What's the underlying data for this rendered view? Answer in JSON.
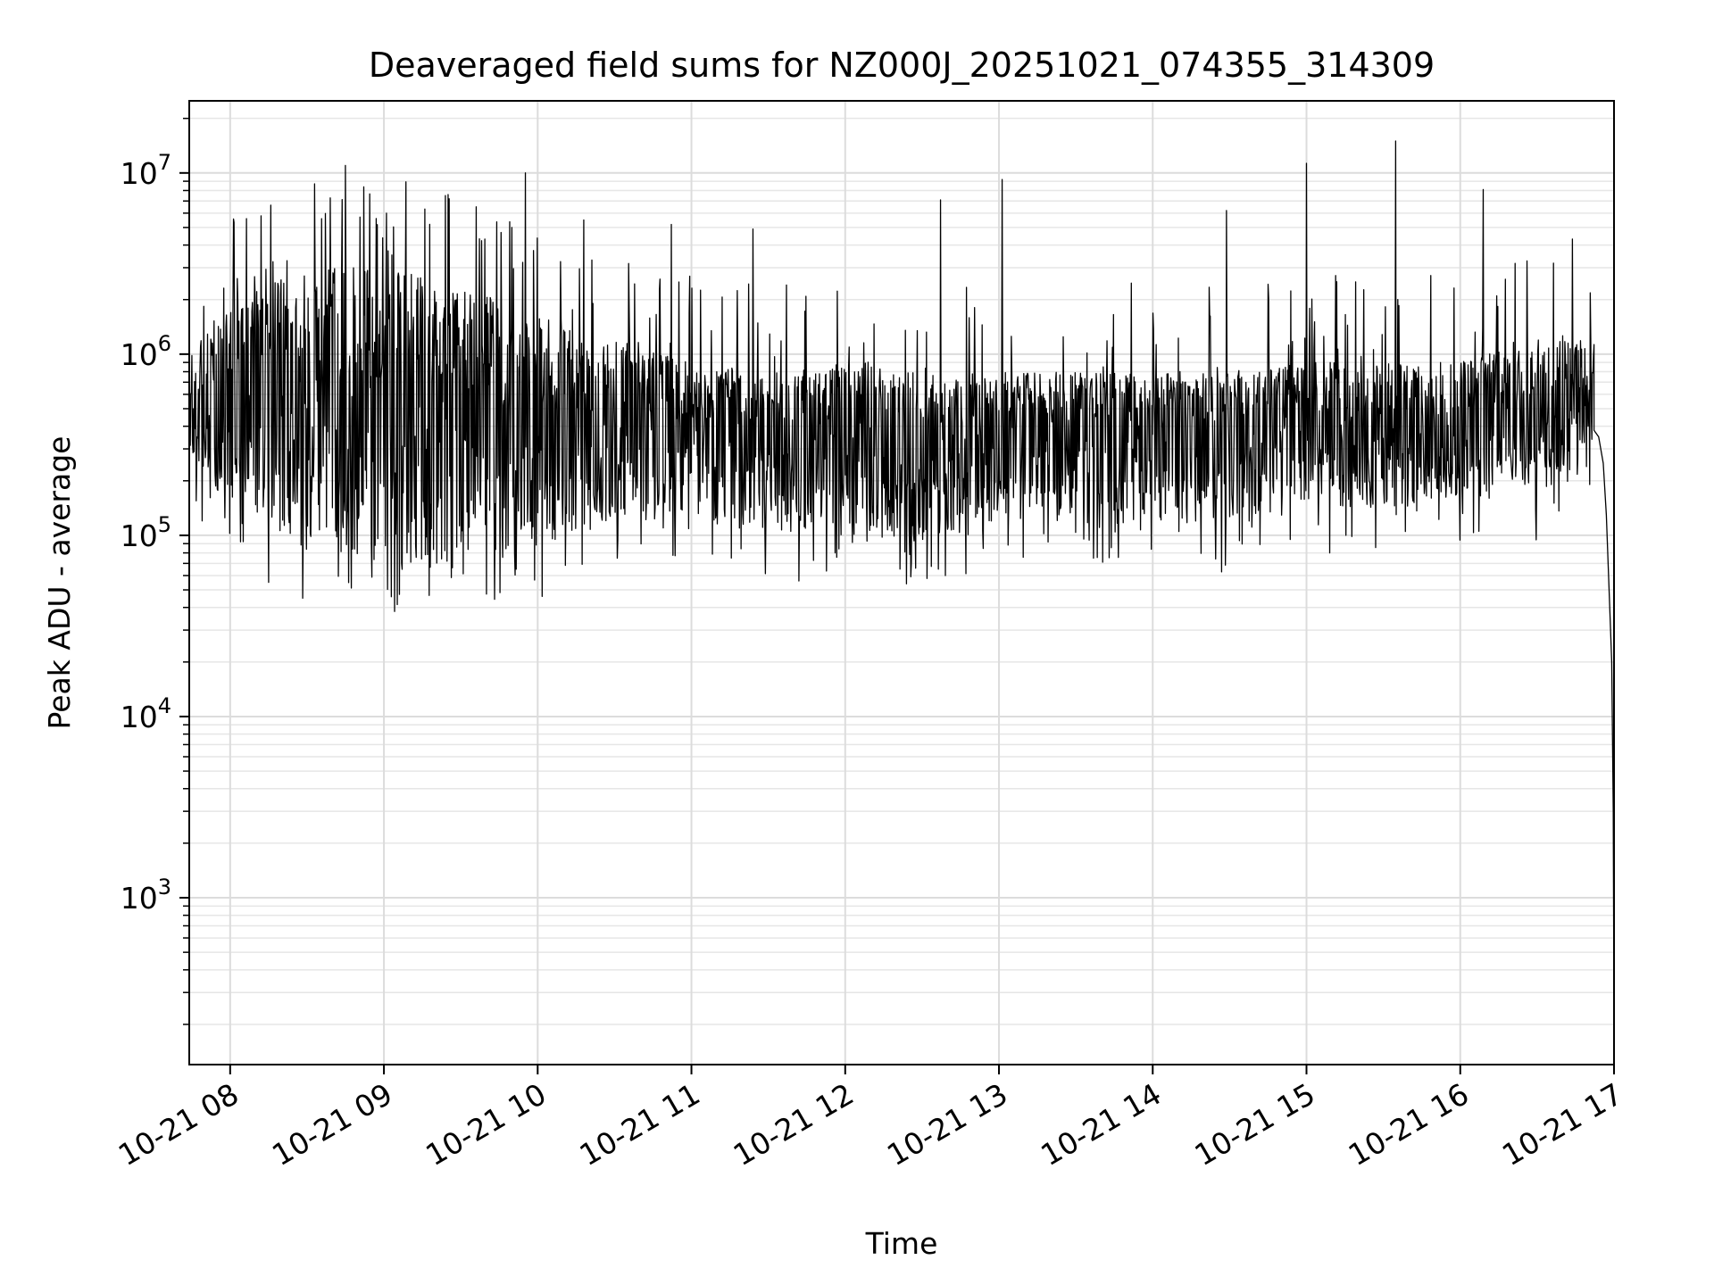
{
  "chart_data": {
    "type": "line",
    "title": "Deaveraged field sums for NZ000J_20251021_074355_314309",
    "xlabel": "Time",
    "ylabel": "Peak ADU - average",
    "yscale": "log",
    "xlim_hours": [
      7.734,
      17.0
    ],
    "ylim": [
      120,
      25000000
    ],
    "grid": true,
    "x_ticks": [
      {
        "hour": 8,
        "label": "10-21 08"
      },
      {
        "hour": 9,
        "label": "10-21 09"
      },
      {
        "hour": 10,
        "label": "10-21 10"
      },
      {
        "hour": 11,
        "label": "10-21 11"
      },
      {
        "hour": 12,
        "label": "10-21 12"
      },
      {
        "hour": 13,
        "label": "10-21 13"
      },
      {
        "hour": 14,
        "label": "10-21 14"
      },
      {
        "hour": 15,
        "label": "10-21 15"
      },
      {
        "hour": 16,
        "label": "10-21 16"
      },
      {
        "hour": 17,
        "label": "10-21 17"
      }
    ],
    "y_ticks": [
      {
        "value": 1000,
        "base": "10",
        "exp": "3"
      },
      {
        "value": 10000,
        "base": "10",
        "exp": "4"
      },
      {
        "value": 100000,
        "base": "10",
        "exp": "5"
      },
      {
        "value": 1000000,
        "base": "10",
        "exp": "6"
      },
      {
        "value": 10000000,
        "base": "10",
        "exp": "7"
      }
    ],
    "series": [
      {
        "name": "deaveraged field sums",
        "color": "#000000",
        "baseline_envelope": [
          {
            "hour": 7.73,
            "low": 250000,
            "mid": 500000,
            "high": 1000000
          },
          {
            "hour": 8.0,
            "low": 150000,
            "mid": 600000,
            "high": 2000000
          },
          {
            "hour": 8.5,
            "low": 100000,
            "mid": 700000,
            "high": 3000000
          },
          {
            "hour": 9.0,
            "low": 70000,
            "mid": 500000,
            "high": 3000000
          },
          {
            "hour": 9.5,
            "low": 70000,
            "mid": 450000,
            "high": 2500000
          },
          {
            "hour": 10.0,
            "low": 80000,
            "mid": 400000,
            "high": 1500000
          },
          {
            "hour": 10.5,
            "low": 120000,
            "mid": 450000,
            "high": 1200000
          },
          {
            "hour": 11.0,
            "low": 120000,
            "mid": 400000,
            "high": 900000
          },
          {
            "hour": 11.5,
            "low": 100000,
            "mid": 350000,
            "high": 800000
          },
          {
            "hour": 12.0,
            "low": 110000,
            "mid": 400000,
            "high": 900000
          },
          {
            "hour": 12.5,
            "low": 90000,
            "mid": 350000,
            "high": 800000
          },
          {
            "hour": 13.0,
            "low": 120000,
            "mid": 380000,
            "high": 800000
          },
          {
            "hour": 13.5,
            "low": 130000,
            "mid": 400000,
            "high": 800000
          },
          {
            "hour": 14.0,
            "low": 120000,
            "mid": 420000,
            "high": 800000
          },
          {
            "hour": 14.5,
            "low": 110000,
            "mid": 400000,
            "high": 800000
          },
          {
            "hour": 15.0,
            "low": 150000,
            "mid": 420000,
            "high": 900000
          },
          {
            "hour": 15.5,
            "low": 140000,
            "mid": 400000,
            "high": 900000
          },
          {
            "hour": 16.0,
            "low": 160000,
            "mid": 420000,
            "high": 900000
          },
          {
            "hour": 16.5,
            "low": 160000,
            "mid": 450000,
            "high": 1200000
          },
          {
            "hour": 16.85,
            "low": 300000,
            "mid": 600000,
            "high": 1500000
          }
        ],
        "peaks": [
          {
            "hour": 8.2,
            "value": 5800000
          },
          {
            "hour": 8.55,
            "value": 8700000
          },
          {
            "hour": 8.75,
            "value": 11000000
          },
          {
            "hour": 8.95,
            "value": 5600000
          },
          {
            "hour": 9.4,
            "value": 7500000
          },
          {
            "hour": 9.6,
            "value": 6500000
          },
          {
            "hour": 9.92,
            "value": 10000000
          },
          {
            "hour": 10.3,
            "value": 5500000
          },
          {
            "hour": 10.87,
            "value": 5200000
          },
          {
            "hour": 11.4,
            "value": 4900000
          },
          {
            "hour": 12.62,
            "value": 7100000
          },
          {
            "hour": 13.02,
            "value": 9200000
          },
          {
            "hour": 14.48,
            "value": 6200000
          },
          {
            "hour": 15.0,
            "value": 11300000
          },
          {
            "hour": 15.58,
            "value": 15000000
          },
          {
            "hour": 16.15,
            "value": 8100000
          }
        ],
        "troughs": [
          {
            "hour": 8.25,
            "value": 55000
          },
          {
            "hour": 8.47,
            "value": 45000
          },
          {
            "hour": 9.07,
            "value": 38000
          },
          {
            "hour": 10.03,
            "value": 46000
          },
          {
            "hour": 11.7,
            "value": 56000
          },
          {
            "hour": 12.4,
            "value": 54000
          },
          {
            "hour": 12.65,
            "value": 60000
          },
          {
            "hour": 15.15,
            "value": 80000
          }
        ],
        "tail": [
          {
            "hour": 16.87,
            "value": 380000
          },
          {
            "hour": 16.9,
            "value": 350000
          },
          {
            "hour": 16.93,
            "value": 250000
          },
          {
            "hour": 16.95,
            "value": 130000
          },
          {
            "hour": 16.97,
            "value": 45000
          },
          {
            "hour": 16.985,
            "value": 20000
          },
          {
            "hour": 16.995,
            "value": 3000
          },
          {
            "hour": 17.0,
            "value": 200
          }
        ]
      }
    ]
  }
}
